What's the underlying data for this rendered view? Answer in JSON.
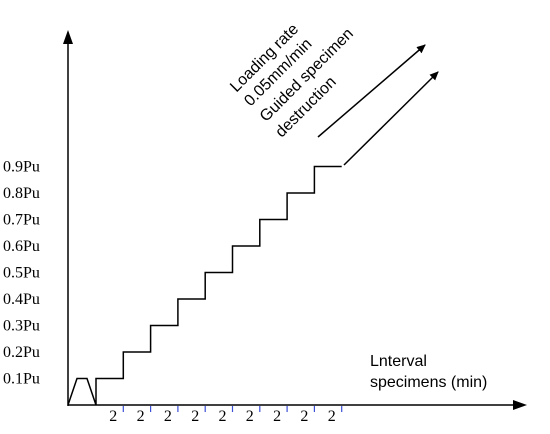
{
  "chart_data": {
    "type": "line",
    "y_tick_labels": [
      "0.1Pu",
      "0.2Pu",
      "0.3Pu",
      "0.4Pu",
      "0.5Pu",
      "0.6Pu",
      "0.7Pu",
      "0.8Pu",
      "0.9Pu"
    ],
    "x_tick_labels": [
      "2",
      "2",
      "2",
      "2",
      "2",
      "2",
      "2",
      "2",
      "2"
    ],
    "xlabel_lines": [
      "Lnterval",
      "specimens (min)"
    ],
    "annotation_lines": [
      "Loading rate",
      "0.05mm/min",
      "Guided specimen",
      "destruction"
    ],
    "steps": [
      0.1,
      0.2,
      0.3,
      0.4,
      0.5,
      0.6,
      0.7,
      0.8,
      0.9
    ],
    "trapezoid_level": 0.1,
    "colors": {
      "axis": "#000000",
      "x_tick_marks": "#3b4fd8",
      "line": "#000000"
    }
  }
}
